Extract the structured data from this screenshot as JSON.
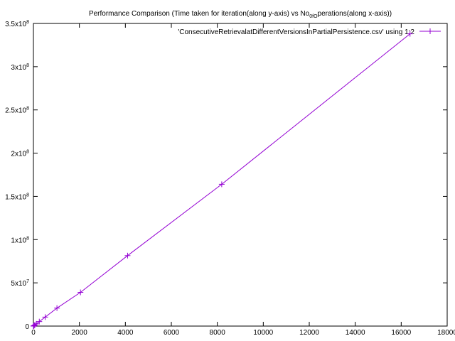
{
  "chart_data": {
    "type": "line",
    "title": "Performance Comparison (Time taken for iteration(along y-axis) vs No_of_operations(along x-axis))",
    "title_parts": {
      "prefix": "Performance Comparison (Time taken for iteration(along y-axis) vs No",
      "sub1": "0",
      "mid": "f",
      "sub2": "O",
      "suffix": "perations(along x-axis))"
    },
    "xlabel": "",
    "ylabel": "",
    "xlim": [
      0,
      18000
    ],
    "ylim": [
      0,
      350000000
    ],
    "x_ticks": [
      0,
      2000,
      4000,
      6000,
      8000,
      10000,
      12000,
      14000,
      16000,
      18000
    ],
    "x_tick_labels": [
      "0",
      "2000",
      "4000",
      "6000",
      "8000",
      "10000",
      "12000",
      "14000",
      "16000",
      "18000"
    ],
    "y_ticks": [
      {
        "value": 0,
        "mantissa": "0",
        "exp": ""
      },
      {
        "value": 50000000,
        "mantissa": "5x10",
        "exp": "7"
      },
      {
        "value": 100000000,
        "mantissa": "1x10",
        "exp": "8"
      },
      {
        "value": 150000000,
        "mantissa": "1.5x10",
        "exp": "8"
      },
      {
        "value": 200000000,
        "mantissa": "2x10",
        "exp": "8"
      },
      {
        "value": 250000000,
        "mantissa": "2.5x10",
        "exp": "8"
      },
      {
        "value": 300000000,
        "mantissa": "3x10",
        "exp": "8"
      },
      {
        "value": 350000000,
        "mantissa": "3.5x10",
        "exp": "8"
      }
    ],
    "grid": false,
    "legend_position": "top-right",
    "series": [
      {
        "name": "'ConsecutiveRetrievalatDifferentVersionsInPartialPersistence.csv' using 1:2",
        "color": "#9400d3",
        "marker": "plus",
        "x": [
          1,
          2,
          4,
          8,
          16,
          32,
          64,
          128,
          256,
          512,
          1024,
          2048,
          4096,
          8192,
          16384
        ],
        "y": [
          20000,
          40000,
          80000,
          160000,
          320000,
          640000,
          1300000,
          2600000,
          5200000,
          10400000,
          20800000,
          39000000,
          81500000,
          164000000,
          338000000
        ]
      }
    ]
  }
}
